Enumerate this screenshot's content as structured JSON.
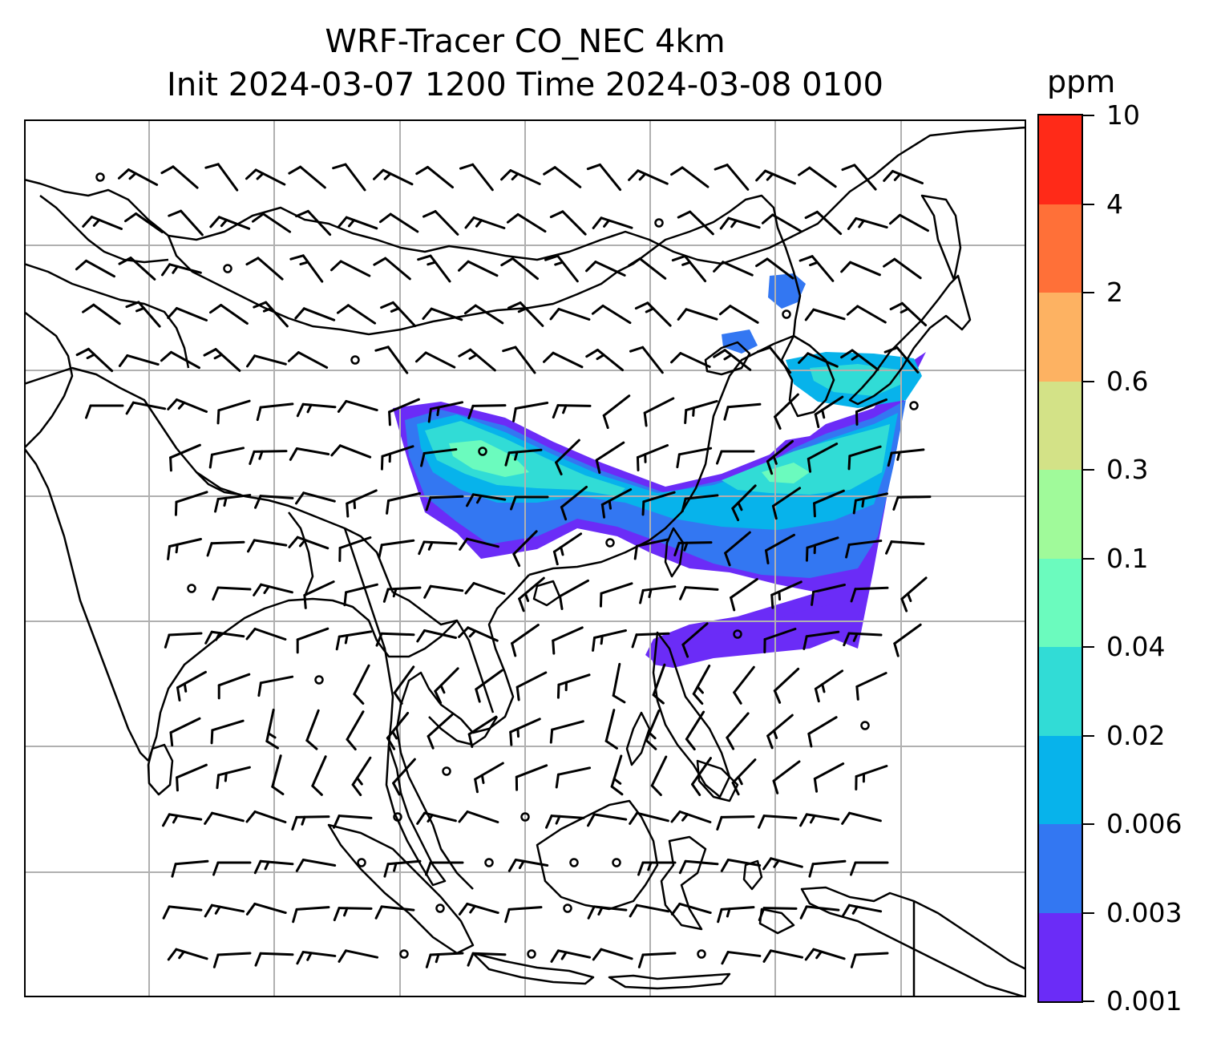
{
  "title": {
    "line1": "WRF-Tracer CO_NEC 4km",
    "line2": "Init 2024-03-07 1200 Time 2024-03-08 0100"
  },
  "colorbar": {
    "unit": "ppm",
    "levels": [
      "0.001",
      "0.003",
      "0.006",
      "0.02",
      "0.04",
      "0.1",
      "0.3",
      "0.6",
      "2",
      "4",
      "10"
    ],
    "colors": [
      "#6b2cf7",
      "#3377f2",
      "#07b3eb",
      "#31dcd6",
      "#6bfbbe",
      "#a0fa9a",
      "#d3e287",
      "#fdb262",
      "#ff7038",
      "#ff2a18"
    ]
  },
  "map": {
    "gridlines": true,
    "grid_color": "#b0b0b0",
    "coastline_color": "#000000",
    "field": "CO_NEC tracer concentration (filled contours)",
    "overlay": "wind barbs",
    "calm_marker": "circle"
  }
}
